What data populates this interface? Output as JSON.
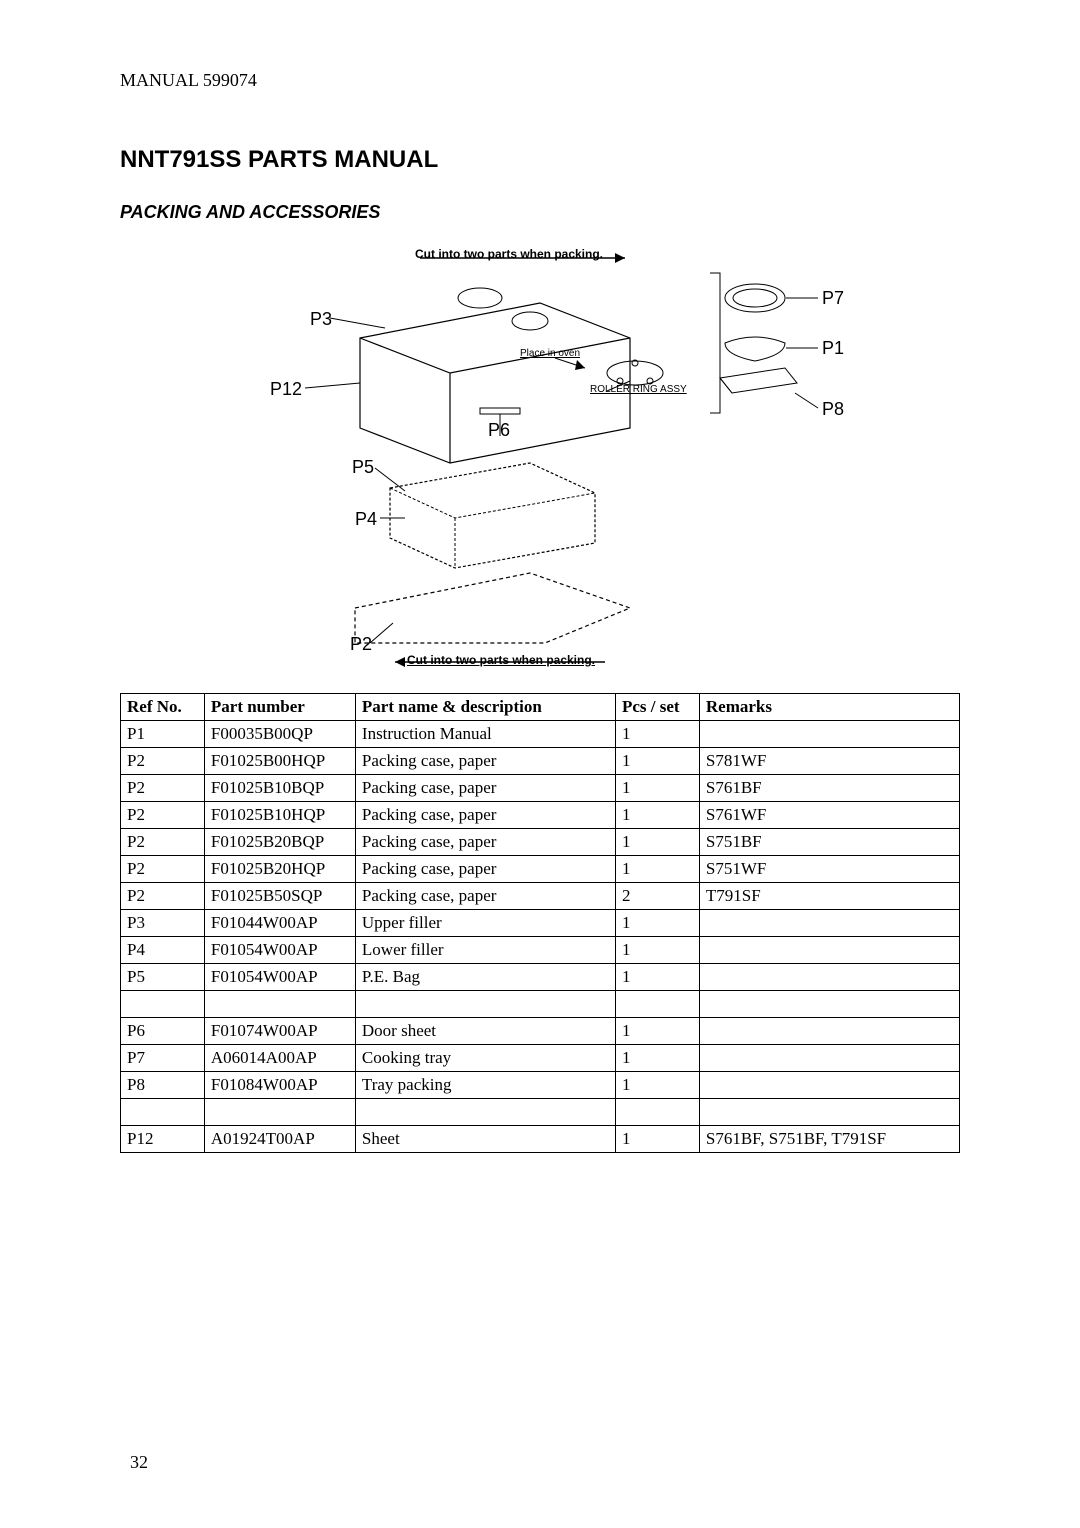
{
  "header": {
    "manual_label": "MANUAL 599074"
  },
  "title": "NNT791SS PARTS MANUAL",
  "subtitle": "PACKING AND ACCESSORIES",
  "diagram": {
    "note_top": "Cut into two parts when packing.",
    "note_bottom": "Cut into two parts when packing.",
    "labels": {
      "p1": "P1",
      "p2": "P2",
      "p3": "P3",
      "p4": "P4",
      "p5": "P5",
      "p6": "P6",
      "p7": "P7",
      "p8": "P8",
      "p12": "P12"
    },
    "annotations": {
      "place_in_oven": "Place in oven",
      "roller_ring": "ROLLER RING ASSY"
    }
  },
  "table": {
    "headers": {
      "ref": "Ref No.",
      "partnum": "Part number",
      "desc": "Part name & description",
      "pcs": "Pcs / set",
      "remarks": "Remarks"
    },
    "rows": [
      {
        "ref": "P1",
        "partnum": "F00035B00QP",
        "desc": "Instruction Manual",
        "pcs": "1",
        "remarks": ""
      },
      {
        "ref": "P2",
        "partnum": "F01025B00HQP",
        "desc": "Packing case, paper",
        "pcs": "1",
        "remarks": "S781WF"
      },
      {
        "ref": "P2",
        "partnum": "F01025B10BQP",
        "desc": "Packing case, paper",
        "pcs": "1",
        "remarks": "S761BF"
      },
      {
        "ref": "P2",
        "partnum": "F01025B10HQP",
        "desc": "Packing case, paper",
        "pcs": "1",
        "remarks": "S761WF"
      },
      {
        "ref": "P2",
        "partnum": "F01025B20BQP",
        "desc": "Packing case, paper",
        "pcs": "1",
        "remarks": "S751BF"
      },
      {
        "ref": "P2",
        "partnum": "F01025B20HQP",
        "desc": "Packing case, paper",
        "pcs": "1",
        "remarks": "S751WF"
      },
      {
        "ref": "P2",
        "partnum": "F01025B50SQP",
        "desc": "Packing case, paper",
        "pcs": "2",
        "remarks": "T791SF"
      },
      {
        "ref": "P3",
        "partnum": "F01044W00AP",
        "desc": "Upper filler",
        "pcs": "1",
        "remarks": ""
      },
      {
        "ref": "P4",
        "partnum": "F01054W00AP",
        "desc": "Lower filler",
        "pcs": "1",
        "remarks": ""
      },
      {
        "ref": "P5",
        "partnum": "F01054W00AP",
        "desc": "P.E. Bag",
        "pcs": "1",
        "remarks": ""
      },
      {
        "ref": "",
        "partnum": "",
        "desc": "",
        "pcs": "",
        "remarks": ""
      },
      {
        "ref": "P6",
        "partnum": "F01074W00AP",
        "desc": "Door sheet",
        "pcs": "1",
        "remarks": ""
      },
      {
        "ref": "P7",
        "partnum": "A06014A00AP",
        "desc": "Cooking tray",
        "pcs": "1",
        "remarks": ""
      },
      {
        "ref": "P8",
        "partnum": "F01084W00AP",
        "desc": "Tray packing",
        "pcs": "1",
        "remarks": ""
      },
      {
        "ref": "",
        "partnum": "",
        "desc": "",
        "pcs": "",
        "remarks": ""
      },
      {
        "ref": "P12",
        "partnum": "A01924T00AP",
        "desc": "Sheet",
        "pcs": "1",
        "remarks": "S761BF, S751BF, T791SF"
      }
    ]
  },
  "page_number": "32"
}
